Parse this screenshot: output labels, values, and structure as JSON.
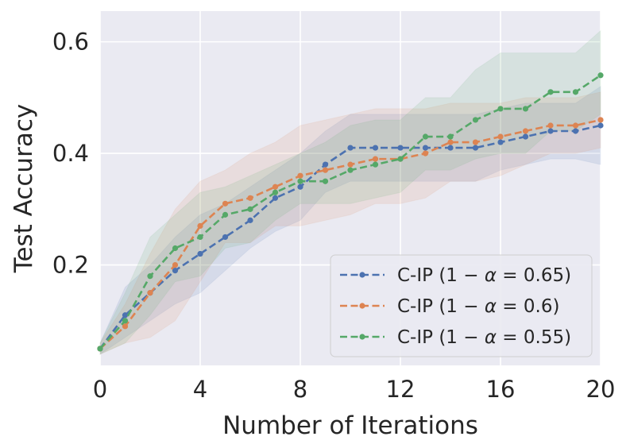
{
  "chart_data": {
    "type": "line",
    "title": "",
    "xlabel": "Number of Iterations",
    "ylabel": "Test Accuracy",
    "xlim": [
      0,
      20
    ],
    "ylim": [
      0.02,
      0.655
    ],
    "xticks": [
      0,
      4,
      8,
      12,
      16,
      20
    ],
    "xtick_labels": [
      "0",
      "4",
      "8",
      "12",
      "16",
      "20"
    ],
    "yticks": [
      0.2,
      0.4,
      0.6
    ],
    "ytick_labels": [
      "0.2",
      "0.4",
      "0.6"
    ],
    "grid": true,
    "legend_position": "bottom-right",
    "x": [
      0,
      1,
      2,
      3,
      4,
      5,
      6,
      7,
      8,
      9,
      10,
      11,
      12,
      13,
      14,
      15,
      16,
      17,
      18,
      19,
      20
    ],
    "series": [
      {
        "name": "C-IP (1 − α = 0.65)",
        "legend_prefix": "C-IP (1",
        "legend_symbol": "α",
        "legend_value": "0.65)",
        "color": "#4c72b0",
        "values": [
          0.05,
          0.11,
          0.15,
          0.19,
          0.22,
          0.25,
          0.28,
          0.32,
          0.34,
          0.38,
          0.41,
          0.41,
          0.41,
          0.41,
          0.41,
          0.41,
          0.42,
          0.43,
          0.44,
          0.44,
          0.45
        ],
        "upper": [
          0.06,
          0.16,
          0.2,
          0.25,
          0.29,
          0.31,
          0.34,
          0.37,
          0.4,
          0.44,
          0.47,
          0.47,
          0.47,
          0.47,
          0.47,
          0.47,
          0.48,
          0.49,
          0.49,
          0.49,
          0.52
        ],
        "lower": [
          0.04,
          0.07,
          0.1,
          0.13,
          0.15,
          0.19,
          0.23,
          0.26,
          0.28,
          0.33,
          0.35,
          0.35,
          0.35,
          0.35,
          0.35,
          0.35,
          0.37,
          0.38,
          0.39,
          0.39,
          0.38
        ]
      },
      {
        "name": "C-IP (1 − α = 0.6)",
        "legend_prefix": "C-IP (1",
        "legend_symbol": "α",
        "legend_value": "0.6)",
        "color": "#dd8452",
        "values": [
          0.05,
          0.09,
          0.15,
          0.2,
          0.27,
          0.31,
          0.32,
          0.34,
          0.36,
          0.37,
          0.38,
          0.39,
          0.39,
          0.4,
          0.42,
          0.42,
          0.43,
          0.44,
          0.45,
          0.45,
          0.46
        ],
        "upper": [
          0.06,
          0.13,
          0.22,
          0.3,
          0.35,
          0.37,
          0.4,
          0.42,
          0.45,
          0.46,
          0.47,
          0.48,
          0.48,
          0.48,
          0.49,
          0.49,
          0.49,
          0.5,
          0.5,
          0.5,
          0.51
        ],
        "lower": [
          0.04,
          0.06,
          0.07,
          0.1,
          0.17,
          0.24,
          0.24,
          0.27,
          0.27,
          0.28,
          0.29,
          0.31,
          0.31,
          0.32,
          0.35,
          0.35,
          0.36,
          0.38,
          0.4,
          0.4,
          0.41
        ]
      },
      {
        "name": "C-IP (1 − α = 0.55)",
        "legend_prefix": "C-IP (1",
        "legend_symbol": "α",
        "legend_value": "0.55)",
        "color": "#55a868",
        "values": [
          0.05,
          0.1,
          0.18,
          0.23,
          0.25,
          0.29,
          0.3,
          0.33,
          0.35,
          0.35,
          0.37,
          0.38,
          0.39,
          0.43,
          0.43,
          0.46,
          0.48,
          0.48,
          0.51,
          0.51,
          0.54
        ],
        "upper": [
          0.06,
          0.15,
          0.25,
          0.29,
          0.33,
          0.34,
          0.36,
          0.38,
          0.4,
          0.42,
          0.45,
          0.46,
          0.46,
          0.5,
          0.5,
          0.55,
          0.58,
          0.58,
          0.58,
          0.58,
          0.62
        ],
        "lower": [
          0.04,
          0.06,
          0.11,
          0.17,
          0.18,
          0.23,
          0.24,
          0.28,
          0.31,
          0.31,
          0.31,
          0.32,
          0.33,
          0.37,
          0.37,
          0.39,
          0.4,
          0.4,
          0.44,
          0.44,
          0.47
        ]
      }
    ]
  }
}
